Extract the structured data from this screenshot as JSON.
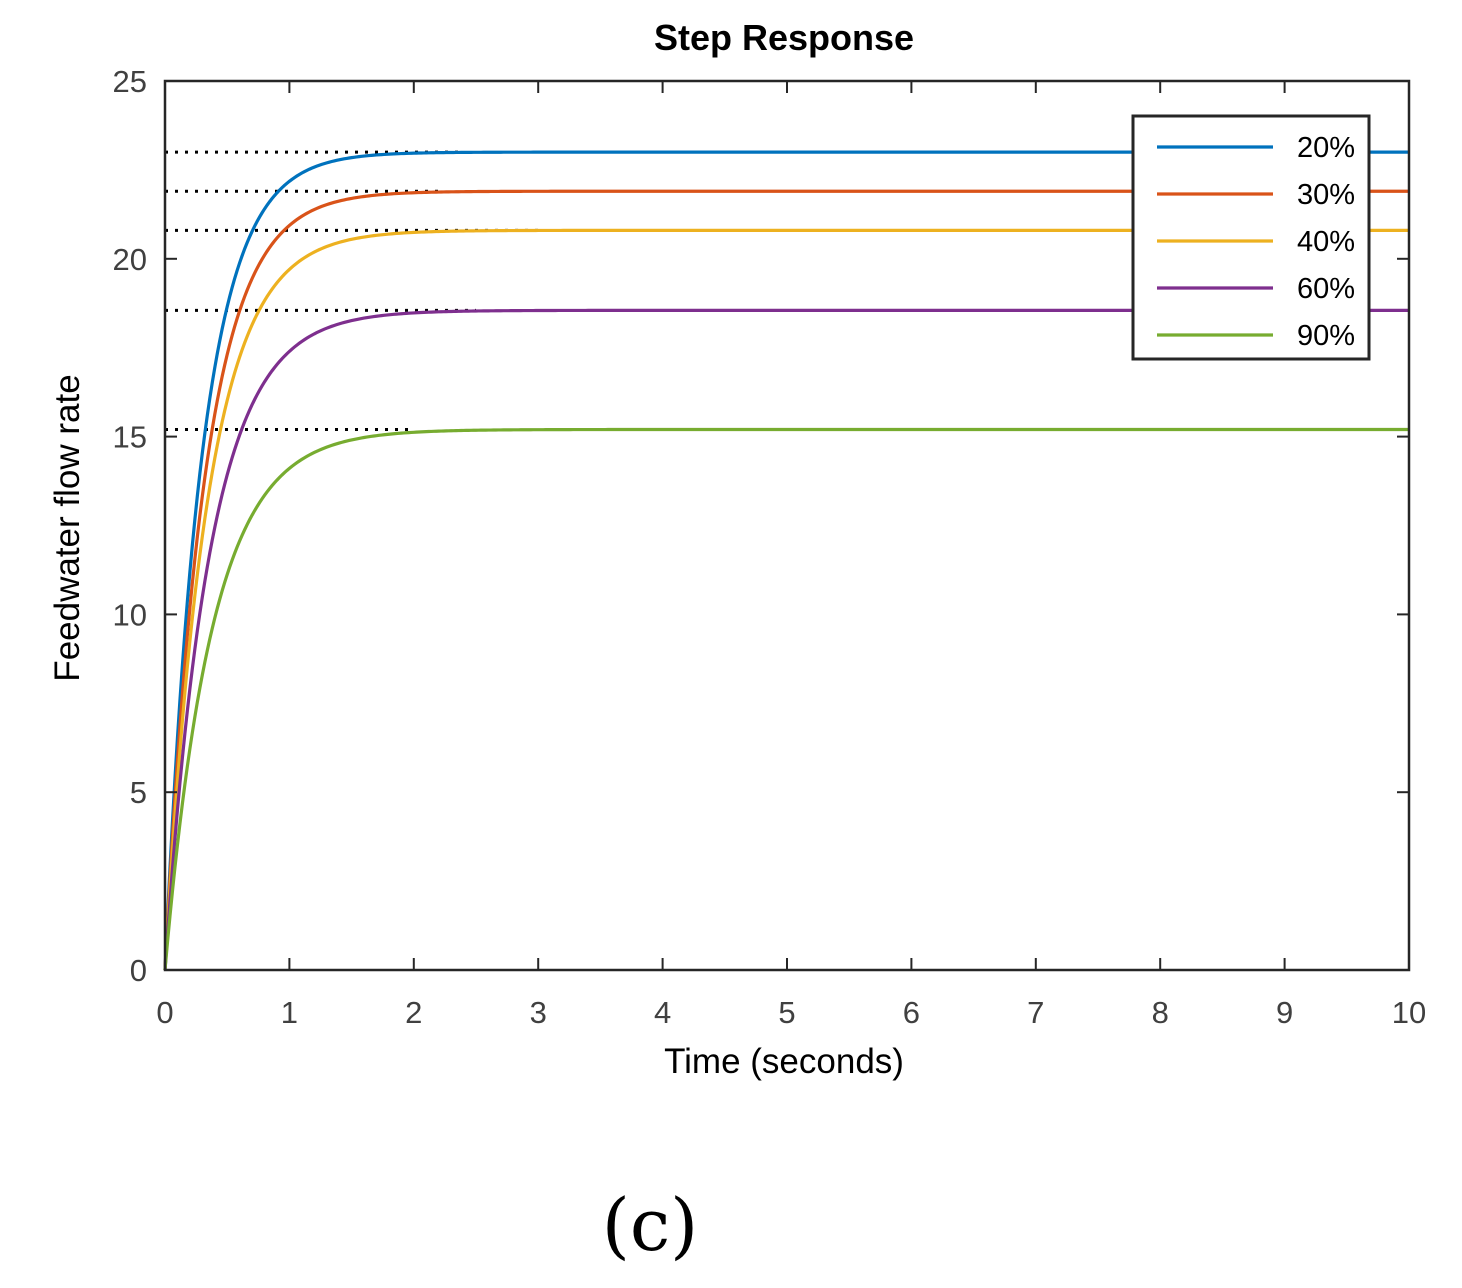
{
  "chart_data": {
    "type": "line",
    "title": "Step Response",
    "xlabel": "Time (seconds)",
    "ylabel": "Feedwater flow rate",
    "xlim": [
      0,
      10
    ],
    "ylim": [
      0,
      25
    ],
    "xticks": [
      "0",
      "1",
      "2",
      "3",
      "4",
      "5",
      "6",
      "7",
      "8",
      "9",
      "10"
    ],
    "yticks": [
      "0",
      "5",
      "10",
      "15",
      "20",
      "25"
    ],
    "grid": false,
    "legend_position": "top-right",
    "series": [
      {
        "name": "20%",
        "color": "#0072BD",
        "final_value": 23.0,
        "time_constant": 0.3,
        "steady_state_marker_end": 2.4
      },
      {
        "name": "30%",
        "color": "#D95319",
        "final_value": 21.9,
        "time_constant": 0.32,
        "steady_state_marker_end": 2.2
      },
      {
        "name": "40%",
        "color": "#EDB120",
        "final_value": 20.8,
        "time_constant": 0.34,
        "steady_state_marker_end": 3.05
      },
      {
        "name": "60%",
        "color": "#7E2F8E",
        "final_value": 18.55,
        "time_constant": 0.36,
        "steady_state_marker_end": 2.5
      },
      {
        "name": "90%",
        "color": "#77AC30",
        "final_value": 15.2,
        "time_constant": 0.38,
        "steady_state_marker_end": 2.0
      }
    ]
  },
  "caption": "(c)"
}
